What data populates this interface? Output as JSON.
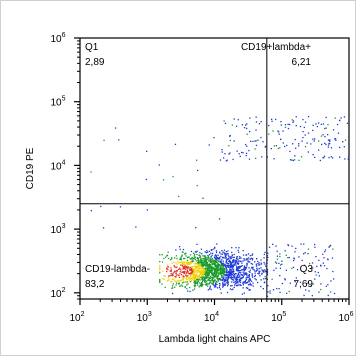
{
  "chart_data": {
    "type": "scatter",
    "title": "",
    "xlabel": "Lambda light chains  APC",
    "ylabel": "CD19 PE",
    "x_scale": "log",
    "y_scale": "log",
    "xlim": [
      100,
      1000000
    ],
    "ylim": [
      80,
      1000000
    ],
    "x_ticks": [
      100,
      1000,
      10000,
      100000,
      1000000
    ],
    "y_ticks": [
      100,
      1000,
      10000,
      100000,
      1000000
    ],
    "gate": {
      "x": 60000,
      "y": 2500
    },
    "quadrants": [
      {
        "id": "Q1",
        "name": "Q1",
        "value": "2,89",
        "position": "top-left"
      },
      {
        "id": "Q2",
        "name": "CD19+lambda+",
        "value": "6,21",
        "position": "top-right"
      },
      {
        "id": "Q3",
        "name": "Q3",
        "value": "7,69",
        "position": "bottom-right"
      },
      {
        "id": "Q4",
        "name": "CD19-lambda-",
        "value": "83,2",
        "position": "bottom-left"
      }
    ],
    "populations": [
      {
        "x_range": [
          1500,
          60000
        ],
        "y_range": [
          90,
          600
        ],
        "count": 1600,
        "density": "high"
      },
      {
        "x_range": [
          12000,
          1000000
        ],
        "y_range": [
          12000,
          60000
        ],
        "count": 180,
        "density": "low"
      },
      {
        "x_range": [
          50000,
          600000
        ],
        "y_range": [
          90,
          600
        ],
        "count": 120,
        "density": "low"
      },
      {
        "x_range": [
          100,
          12000
        ],
        "y_range": [
          1000,
          40000
        ],
        "count": 25,
        "density": "low"
      }
    ],
    "colors": {
      "low": "#1f3bd6",
      "mid": "#1a9a2a",
      "high": "#f0d000",
      "peak": "#e03020"
    },
    "grid": false,
    "legend": "none"
  }
}
